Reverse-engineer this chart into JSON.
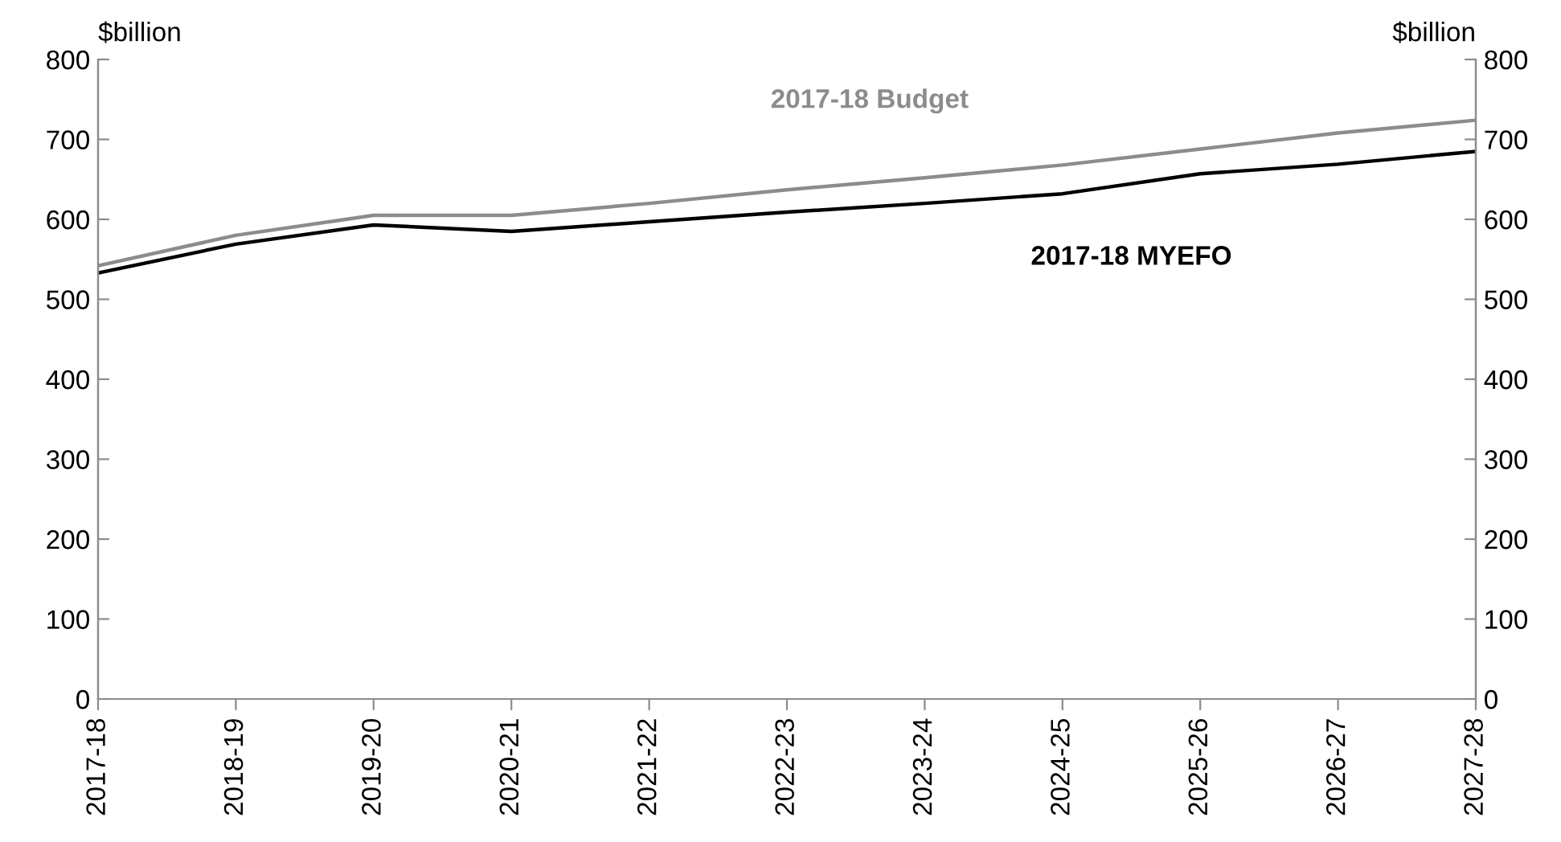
{
  "chart_data": {
    "type": "line",
    "categories": [
      "2017-18",
      "2018-19",
      "2019-20",
      "2020-21",
      "2021-22",
      "2022-23",
      "2023-24",
      "2024-25",
      "2025-26",
      "2026-27",
      "2027-28"
    ],
    "series": [
      {
        "name": "2017-18 Budget",
        "color": "#8c8c8c",
        "values": [
          542,
          580,
          605,
          605,
          620,
          637,
          652,
          668,
          688,
          708,
          724
        ]
      },
      {
        "name": "2017-18 MYEFO",
        "color": "#000000",
        "values": [
          533,
          569,
          593,
          585,
          597,
          609,
          620,
          632,
          657,
          669,
          685
        ]
      }
    ],
    "ylabel": "$billion",
    "y2label": "$billion",
    "ylim": [
      0,
      800
    ],
    "yticks": [
      0,
      100,
      200,
      300,
      400,
      500,
      600,
      700,
      800
    ],
    "y2lim": [
      0,
      800
    ],
    "y2ticks": [
      0,
      100,
      200,
      300,
      400,
      500,
      600,
      700,
      800
    ],
    "grid": false,
    "legend": false,
    "marker": "none",
    "line_style": "solid"
  }
}
